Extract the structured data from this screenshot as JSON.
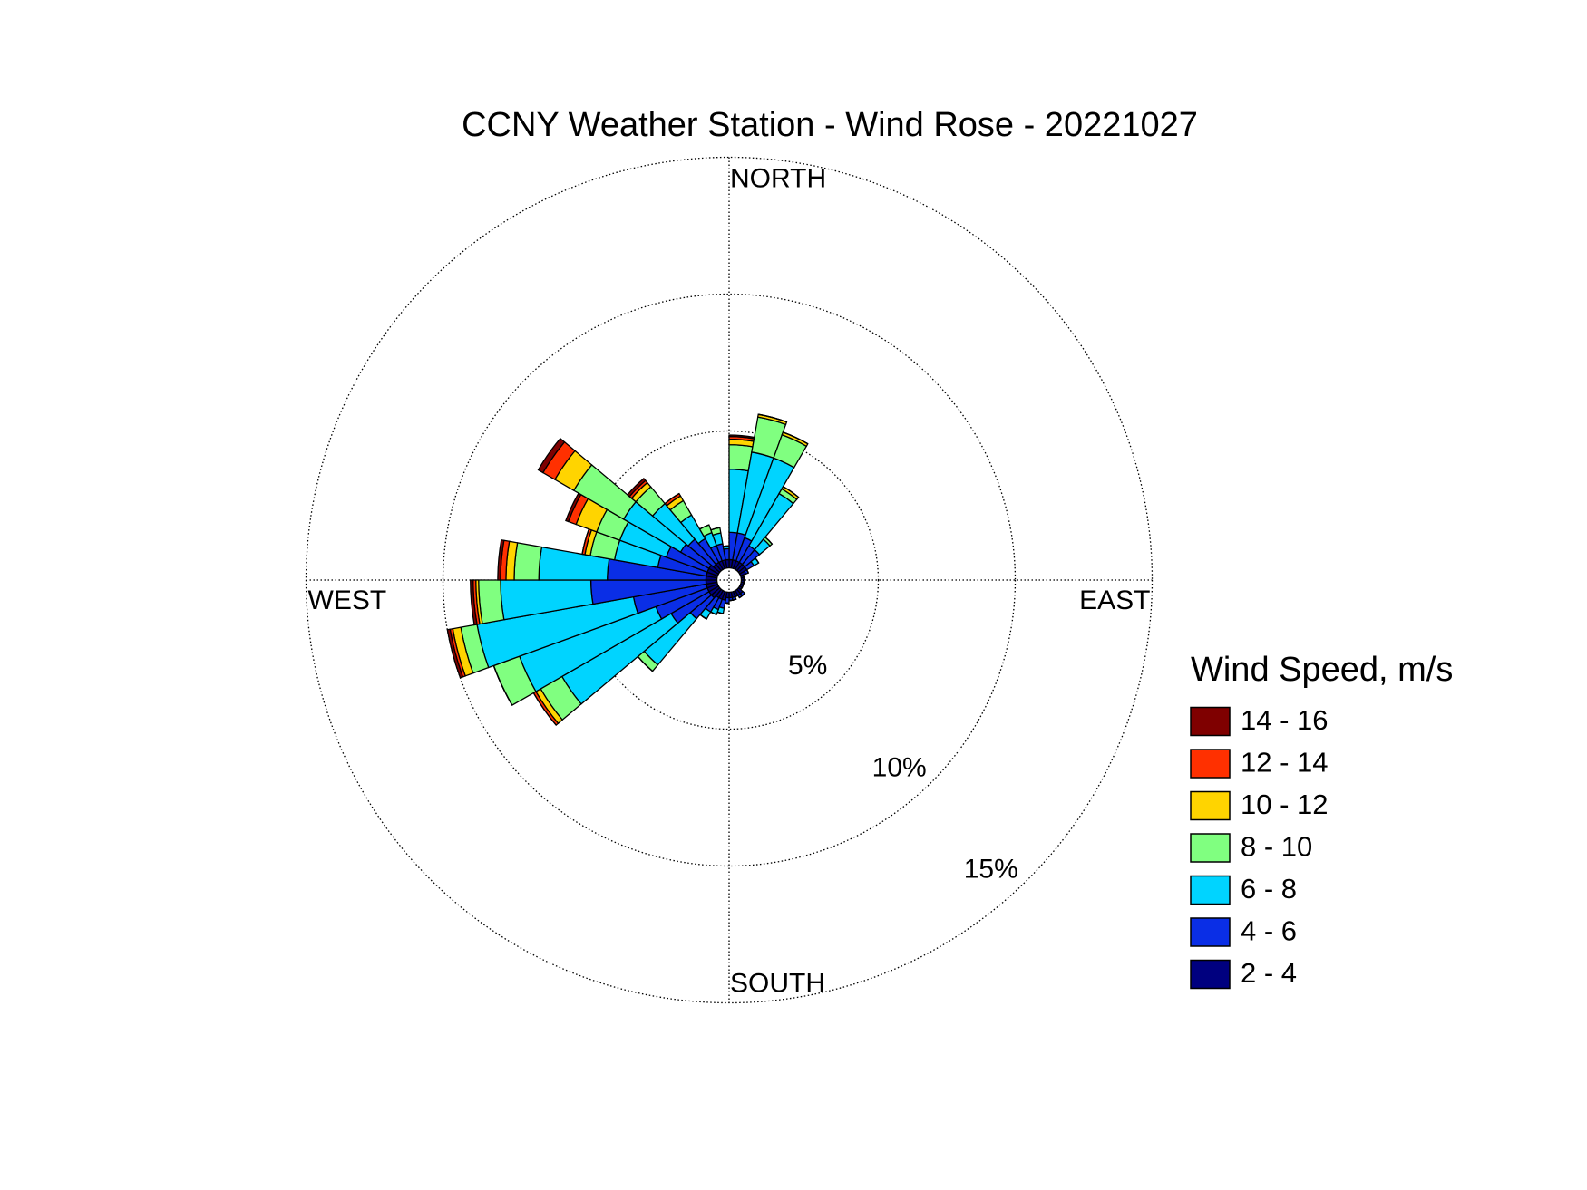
{
  "chart_data": {
    "type": "windrose",
    "title": "CCNY Weather Station - Wind Rose - 20221027",
    "direction_labels": {
      "north": "NORTH",
      "east": "EAST",
      "south": "SOUTH",
      "west": "WEST"
    },
    "legend_title": "Wind Speed, m/s",
    "x": [
      5,
      15,
      25,
      35,
      45,
      55,
      65,
      75,
      85,
      95,
      105,
      115,
      125,
      135,
      145,
      155,
      165,
      175,
      185,
      195,
      205,
      215,
      225,
      235,
      245,
      255,
      265,
      275,
      285,
      295,
      305,
      315,
      325,
      335,
      345,
      355
    ],
    "rlim": [
      0,
      15
    ],
    "rticks": [
      {
        "value": 5,
        "label": "5%"
      },
      {
        "value": 10,
        "label": "10%"
      },
      {
        "value": 15,
        "label": "15%"
      }
    ],
    "grid": true,
    "series": [
      {
        "name": "2 - 4",
        "color": "#00007f",
        "values": [
          0.3,
          0.3,
          0.3,
          0.3,
          0.3,
          0.3,
          0.2,
          0.1,
          0.1,
          0.1,
          0.1,
          0.1,
          0.1,
          0.2,
          0.2,
          0.2,
          0.2,
          0.2,
          0.2,
          0.3,
          0.3,
          0.3,
          0.4,
          0.4,
          0.4,
          0.4,
          0.4,
          0.4,
          0.4,
          0.4,
          0.4,
          0.3,
          0.3,
          0.3,
          0.3,
          0.3
        ]
      },
      {
        "name": "4 - 6",
        "color": "#0a2ee6",
        "values": [
          1.0,
          1.0,
          0.9,
          0.7,
          0.7,
          0.3,
          0.1,
          0,
          0,
          0,
          0,
          0,
          0,
          0.1,
          0.1,
          0,
          0.1,
          0.1,
          0.2,
          0.3,
          0.4,
          0.6,
          1.0,
          1.6,
          2.0,
          2.7,
          4.2,
          3.6,
          1.8,
          1.6,
          1.2,
          1.2,
          1.0,
          0.6,
          0.6,
          0.4
        ]
      },
      {
        "name": "6 - 8",
        "color": "#00d4ff",
        "values": [
          2.3,
          3.0,
          3.1,
          2.2,
          0.5,
          0.2,
          0,
          0,
          0,
          0,
          0,
          0,
          0,
          0,
          0,
          0,
          0,
          0,
          0,
          0.2,
          0.2,
          0.3,
          2.2,
          4.6,
          5.3,
          5.8,
          3.3,
          2.5,
          1.6,
          1.8,
          2.4,
          1.7,
          1.0,
          0.5,
          0.4,
          0.1
        ]
      },
      {
        "name": "8 - 10",
        "color": "#80ff80",
        "values": [
          0.9,
          1.3,
          0.9,
          0.2,
          0.1,
          0,
          0,
          0,
          0,
          0,
          0,
          0,
          0,
          0,
          0,
          0,
          0,
          0,
          0,
          0,
          0,
          0,
          0.3,
          0.9,
          1.0,
          0.6,
          0.8,
          0.9,
          0.9,
          0.9,
          2.1,
          0.8,
          0.6,
          0.3,
          0.2,
          0
        ]
      },
      {
        "name": "10 - 12",
        "color": "#ffd400",
        "values": [
          0.2,
          0.1,
          0.1,
          0.1,
          0,
          0,
          0,
          0,
          0,
          0,
          0,
          0,
          0,
          0,
          0,
          0,
          0,
          0,
          0,
          0,
          0,
          0,
          0,
          0.2,
          0,
          0.3,
          0.1,
          0.3,
          0.2,
          0.8,
          0.8,
          0.2,
          0.2,
          0,
          0,
          0
        ]
      },
      {
        "name": "12 - 14",
        "color": "#ff3000",
        "values": [
          0.1,
          0,
          0,
          0,
          0,
          0,
          0,
          0,
          0,
          0,
          0,
          0,
          0,
          0,
          0,
          0,
          0,
          0,
          0,
          0,
          0,
          0,
          0,
          0.1,
          0,
          0.1,
          0.1,
          0.2,
          0.1,
          0.3,
          0.5,
          0.1,
          0.1,
          0,
          0,
          0
        ]
      },
      {
        "name": "14 - 16",
        "color": "#7f0000",
        "values": [
          0.05,
          0,
          0,
          0,
          0,
          0,
          0,
          0,
          0,
          0,
          0,
          0,
          0,
          0,
          0,
          0,
          0,
          0,
          0,
          0,
          0,
          0,
          0,
          0,
          0,
          0.1,
          0.1,
          0.1,
          0,
          0.1,
          0.2,
          0.1,
          0,
          0,
          0,
          0
        ]
      }
    ]
  }
}
